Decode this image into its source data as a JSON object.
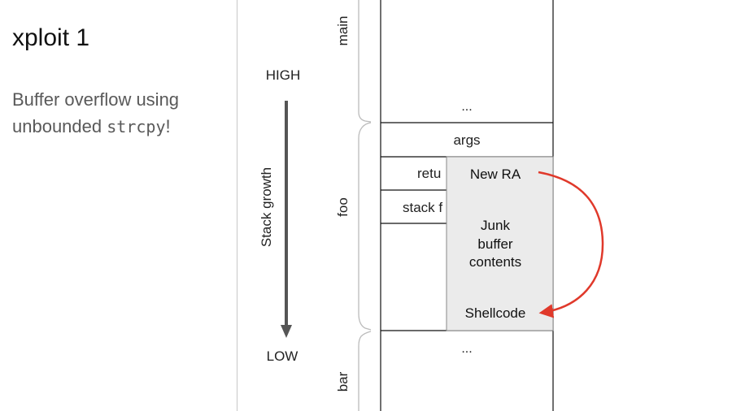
{
  "slide": {
    "title": "xploit 1",
    "subtitle_prefix": "Buffer overflow using unbounded ",
    "subtitle_code": "strcpy",
    "subtitle_suffix": "!"
  },
  "diagram": {
    "high_label": "HIGH",
    "low_label": "LOW",
    "growth_label": "Stack growth",
    "frame_labels": {
      "main": "main",
      "foo": "foo",
      "bar": "bar"
    },
    "cells": {
      "ellipsis_top": "...",
      "args": "args",
      "return": "retu",
      "stack_frame": "stack f",
      "ellipsis_bottom": "..."
    },
    "overlay": {
      "new_ra": "New RA",
      "junk_line1": "Junk",
      "junk_line2": "buffer",
      "junk_line3": "contents",
      "shellcode": "Shellcode"
    },
    "colors": {
      "arrow_red": "#e0392b",
      "overlay_fill": "#ebebeb",
      "growth_arrow": "#555555"
    }
  }
}
